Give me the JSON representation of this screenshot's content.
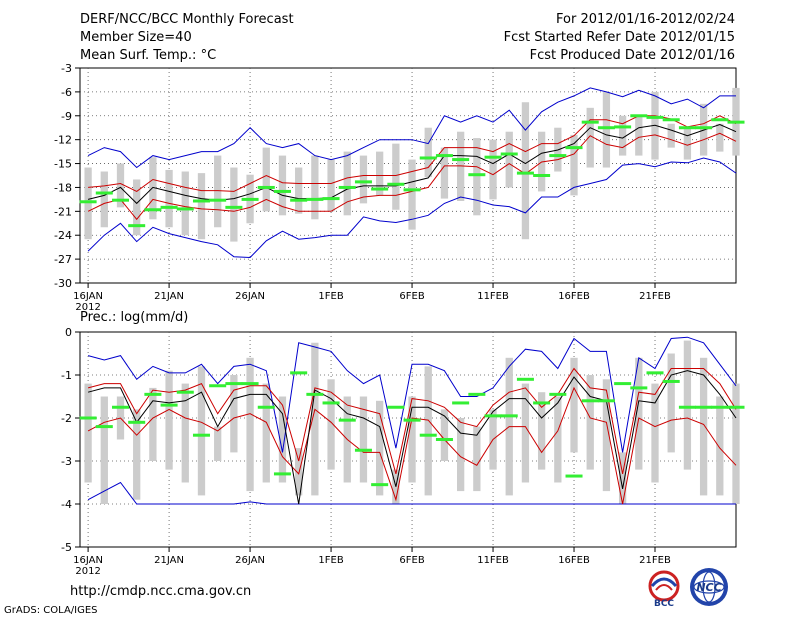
{
  "header": {
    "title": "DERF/NCC/BCC Monthly Forecast",
    "member_size": "Member Size=40",
    "period": "For 2012/01/16-2012/02/24",
    "started": "Fcst Started Refer Date 2012/01/15",
    "produced": "Fcst Produced Date 2012/01/16"
  },
  "footer": {
    "url": "http://cmdp.ncc.cma.gov.cn",
    "grads": "GrADS: COLA/IGES",
    "logo_bcc": "BCC",
    "logo_ncc": "NCC"
  },
  "colors": {
    "max_min": "#0000cc",
    "spread": "#cc0000",
    "mean": "#000000",
    "box": "#cccccc",
    "observed": "#33ee33",
    "grid": "#555555"
  },
  "chart_data": [
    {
      "type": "line",
      "title": "Mean Surf. Temp.: °C",
      "xlabel": "",
      "ylabel": "",
      "ylim": [
        -30,
        -3
      ],
      "yticks": [
        -3,
        -6,
        -9,
        -12,
        -15,
        -18,
        -21,
        -24,
        -27,
        -30
      ],
      "ytick_labels": [
        "-3",
        "-6",
        "-9",
        "-12",
        "-15",
        "-18",
        "-21",
        "-24",
        "-27",
        "-30"
      ],
      "xtick_labels": [
        "16JAN",
        "21JAN",
        "26JAN",
        "1FEB",
        "6FEB",
        "11FEB",
        "16FEB",
        "21FEB"
      ],
      "xtick_day_index": [
        0,
        5,
        10,
        15,
        20,
        25,
        30,
        35
      ],
      "year_label": "2012",
      "days": 40,
      "series": [
        {
          "name": "max",
          "values": [
            -14,
            -13,
            -13.5,
            -15.5,
            -14,
            -14.5,
            -14,
            -13.5,
            -13.5,
            -12.5,
            -10.5,
            -12.5,
            -13,
            -12.5,
            -14,
            -14.5,
            -14,
            -13,
            -12,
            -12,
            -12,
            -12.5,
            -9,
            -9.8,
            -9,
            -9.8,
            -8.3,
            -10.8,
            -8.5,
            -7.3,
            -6.5,
            -5.5,
            -6,
            -6.6,
            -5.8,
            -6.5,
            -7.5,
            -6.9,
            -8,
            -6.5,
            -6.5
          ]
        },
        {
          "name": "upper_spread",
          "values": [
            -18,
            -17.8,
            -17.5,
            -18.5,
            -17,
            -17.5,
            -18,
            -18.4,
            -18.4,
            -18.5,
            -17.5,
            -16.5,
            -17.4,
            -17.5,
            -17.5,
            -17.5,
            -16.8,
            -16.5,
            -16.5,
            -16.5,
            -16,
            -15.5,
            -13,
            -13,
            -13,
            -13.5,
            -12.5,
            -13.5,
            -12.5,
            -12.5,
            -11.5,
            -9.5,
            -9.5,
            -10,
            -9,
            -9,
            -9.4,
            -10.4,
            -10,
            -9,
            -10
          ]
        },
        {
          "name": "mean",
          "values": [
            -19.5,
            -19,
            -18,
            -20,
            -18,
            -18.5,
            -19,
            -19.4,
            -19.6,
            -19.4,
            -18.8,
            -18,
            -19,
            -19.4,
            -19.4,
            -19.3,
            -18.2,
            -17.8,
            -17.8,
            -17.8,
            -17.3,
            -16.8,
            -14,
            -14,
            -14.1,
            -15,
            -13.8,
            -15,
            -13.7,
            -13.3,
            -12.5,
            -10.5,
            -11.4,
            -11.8,
            -10.5,
            -10.2,
            -10.8,
            -11.5,
            -10.8,
            -10.1,
            -11
          ]
        },
        {
          "name": "lower_spread",
          "values": [
            -21,
            -20,
            -19.5,
            -22,
            -19.5,
            -20,
            -20.4,
            -20.7,
            -20.8,
            -21,
            -20.5,
            -19.5,
            -20.4,
            -21,
            -21,
            -21,
            -19.8,
            -19.2,
            -19,
            -19,
            -18.5,
            -18,
            -15.3,
            -15.3,
            -15.4,
            -16.4,
            -15,
            -16.3,
            -14.8,
            -14.5,
            -13.8,
            -11.5,
            -12.6,
            -13,
            -11.7,
            -11.4,
            -12,
            -12.7,
            -12,
            -11.2,
            -12.2
          ]
        },
        {
          "name": "min",
          "values": [
            -26,
            -24,
            -22.5,
            -24.8,
            -23,
            -23.8,
            -24.3,
            -24.8,
            -25.2,
            -26.7,
            -26.8,
            -24.7,
            -23.5,
            -24.5,
            -24.3,
            -24,
            -24,
            -21.7,
            -22.2,
            -22.4,
            -22,
            -21.5,
            -20,
            -19.2,
            -19.6,
            -20.2,
            -20.4,
            -21.2,
            -19.2,
            -19.2,
            -18,
            -17.5,
            -17,
            -15.2,
            -15,
            -15.4,
            -14.8,
            -14.9,
            -14.3,
            -14.8,
            -16.2
          ]
        },
        {
          "name": "box_top",
          "values": [
            -15.5,
            -16,
            -15,
            -17,
            -14.2,
            -15.8,
            -16,
            -16.2,
            -14,
            -15.5,
            -16.4,
            -13,
            -14,
            -15.5,
            -14,
            -14.5,
            -13.5,
            -14,
            -13.5,
            -12.5,
            -14.5,
            -10.5,
            -13,
            -11,
            -11.8,
            -12,
            -11,
            -7.3,
            -11,
            -10.5,
            -11.4,
            -8,
            -6,
            -9,
            -9,
            -6,
            -10,
            -10.5,
            -7.5,
            -10,
            -5.5
          ]
        },
        {
          "name": "box_bottom",
          "values": [
            -24.5,
            -23,
            -20.5,
            -24,
            -22,
            -23,
            -24,
            -24.5,
            -23,
            -24.8,
            -22.5,
            -21,
            -21.5,
            -21.3,
            -22,
            -21,
            -21.5,
            -20,
            -19,
            -20.8,
            -23.3,
            -16.7,
            -19.4,
            -19.7,
            -21.5,
            -19.5,
            -18,
            -24.5,
            -18.5,
            -16,
            -19,
            -15.5,
            -15.5,
            -14,
            -14,
            -14.5,
            -13,
            -14.5,
            -14,
            -13.5,
            -14
          ]
        },
        {
          "name": "observed",
          "values": [
            -19.8,
            -18.7,
            -19.6,
            -22.8,
            -20.8,
            -20.5,
            -20.7,
            -19.7,
            -19.6,
            -20.5,
            -19.5,
            -18,
            -18.5,
            -19.6,
            -19.5,
            -19.4,
            -18,
            -17.3,
            -18.2,
            -17.6,
            -18.3,
            -14.3,
            -14,
            -14.5,
            -16.4,
            -14.2,
            -13.8,
            -16.2,
            -16.5,
            -14,
            -13,
            -9.8,
            -10.5,
            -10.4,
            -9,
            -9.2,
            -9.5,
            -10.5,
            -10.5,
            -9.5,
            -9.8
          ]
        }
      ]
    },
    {
      "type": "line",
      "title": "Prec.: log(mm/d)",
      "xlabel": "",
      "ylabel": "",
      "ylim": [
        -5,
        0
      ],
      "yticks": [
        0,
        -1,
        -2,
        -3,
        -4,
        -5
      ],
      "ytick_labels": [
        "0",
        "-1",
        "-2",
        "-3",
        "-4",
        "-5"
      ],
      "xtick_labels": [
        "16JAN",
        "21JAN",
        "26JAN",
        "1FEB",
        "6FEB",
        "11FEB",
        "16FEB",
        "21FEB"
      ],
      "xtick_day_index": [
        0,
        5,
        10,
        15,
        20,
        25,
        30,
        35
      ],
      "year_label": "2012",
      "days": 40,
      "series": [
        {
          "name": "max",
          "values": [
            -0.55,
            -0.65,
            -0.55,
            -1.1,
            -0.8,
            -0.95,
            -0.95,
            -0.75,
            -1.2,
            -0.8,
            -0.75,
            -0.9,
            -2.8,
            -0.25,
            -0.35,
            -0.45,
            -0.9,
            -1.2,
            -1.0,
            -2.7,
            -0.75,
            -0.75,
            -0.9,
            -1.5,
            -1.5,
            -1.3,
            -0.8,
            -0.4,
            -0.45,
            -0.85,
            -0.15,
            -0.45,
            -0.45,
            -2.8,
            -0.6,
            -0.85,
            -0.15,
            -0.12,
            -0.25,
            -0.75,
            -1.25
          ]
        },
        {
          "name": "upper_spread",
          "values": [
            -1.3,
            -1.2,
            -1.2,
            -1.9,
            -1.35,
            -1.4,
            -1.35,
            -1.2,
            -1.9,
            -1.35,
            -1.25,
            -1.25,
            -1.7,
            -3.0,
            -1.3,
            -1.4,
            -1.7,
            -1.8,
            -1.9,
            -3.3,
            -1.55,
            -1.6,
            -1.75,
            -2.1,
            -2.2,
            -1.7,
            -1.4,
            -1.3,
            -1.75,
            -1.45,
            -0.85,
            -1.3,
            -1.35,
            -3.3,
            -1.4,
            -1.45,
            -0.85,
            -0.85,
            -0.85,
            -1.2,
            -1.8
          ]
        },
        {
          "name": "mean",
          "values": [
            -1.4,
            -1.3,
            -1.3,
            -2.1,
            -1.6,
            -1.65,
            -1.6,
            -1.4,
            -2.2,
            -1.55,
            -1.45,
            -1.45,
            -1.9,
            -4.0,
            -1.35,
            -1.55,
            -1.9,
            -2.0,
            -2.2,
            -3.6,
            -1.75,
            -1.75,
            -1.95,
            -2.35,
            -2.4,
            -1.85,
            -1.55,
            -1.55,
            -2.0,
            -1.65,
            -1.05,
            -1.5,
            -1.6,
            -3.65,
            -1.6,
            -1.65,
            -1.0,
            -0.9,
            -1.0,
            -1.45,
            -2.0
          ]
        },
        {
          "name": "lower_spread",
          "values": [
            -2.3,
            -2.1,
            -2.0,
            -2.4,
            -2.0,
            -1.8,
            -2.0,
            -2.1,
            -2.3,
            -2.0,
            -1.9,
            -2.1,
            -2.9,
            -3.3,
            -1.8,
            -2.1,
            -2.5,
            -2.8,
            -2.8,
            -3.9,
            -2.0,
            -2.05,
            -2.5,
            -2.9,
            -3.1,
            -2.5,
            -2.2,
            -2.2,
            -2.8,
            -2.3,
            -1.3,
            -2.0,
            -2.1,
            -4.0,
            -2.0,
            -2.2,
            -2.05,
            -2.0,
            -2.15,
            -2.7,
            -3.1
          ]
        },
        {
          "name": "min",
          "values": [
            -3.9,
            -3.7,
            -3.5,
            -4,
            -4,
            -4,
            -4,
            -4,
            -4,
            -4,
            -3.95,
            -4,
            -4,
            -4,
            -4,
            -4,
            -4,
            -4,
            -4,
            -4,
            -4,
            -4,
            -4,
            -4,
            -4,
            -4,
            -4,
            -4,
            -4,
            -4,
            -4,
            -4,
            -4,
            -4,
            -4,
            -4,
            -4,
            -4,
            -4,
            -4,
            -4
          ]
        },
        {
          "name": "box_top",
          "values": [
            -1.2,
            -1.5,
            -1.5,
            -1.8,
            -1.3,
            -0.9,
            -1.2,
            -0.8,
            -2.2,
            -1.0,
            -0.6,
            -1.2,
            -1.5,
            -2.7,
            -0.25,
            -1.1,
            -1.5,
            -1.5,
            -1.6,
            -3.2,
            -1.5,
            -0.8,
            -1.8,
            -2.0,
            -2.2,
            -1.8,
            -0.6,
            -1.2,
            -1.4,
            -1.5,
            -0.6,
            -1.0,
            -1.1,
            -2.8,
            -0.6,
            -1.2,
            -0.5,
            -0.2,
            -0.6,
            -1.5,
            -1.2
          ]
        },
        {
          "name": "box_bottom",
          "values": [
            -3.5,
            -4.0,
            -2.5,
            -3.9,
            -3.0,
            -3.2,
            -3.5,
            -3.8,
            -3.0,
            -2.8,
            -3.7,
            -3.5,
            -3.5,
            -3.8,
            -3.8,
            -3.2,
            -3.5,
            -3.5,
            -3.8,
            -4.0,
            -3.5,
            -3.8,
            -3.0,
            -3.7,
            -3.7,
            -3.2,
            -3.8,
            -3.5,
            -3.2,
            -3.5,
            -2.8,
            -3.2,
            -3.7,
            -4.0,
            -3.2,
            -3.5,
            -2.8,
            -3.2,
            -3.8,
            -3.8,
            -4.0
          ]
        },
        {
          "name": "observed",
          "values": [
            -2.0,
            -2.2,
            -1.75,
            -2.1,
            -1.45,
            -1.7,
            -1.4,
            -2.4,
            -1.25,
            -1.2,
            -1.2,
            -1.75,
            -3.3,
            -0.95,
            -1.45,
            -1.65,
            -2.05,
            -2.75,
            -3.55,
            -1.75,
            -2.05,
            -2.4,
            -2.5,
            -1.65,
            -1.45,
            -1.95,
            -1.95,
            -1.1,
            -1.65,
            -1.45,
            -3.35,
            -1.6,
            -1.6,
            -1.2,
            -1.3,
            -0.95,
            -1.15,
            -1.75,
            -1.75,
            -1.75,
            -1.75
          ]
        }
      ]
    }
  ]
}
